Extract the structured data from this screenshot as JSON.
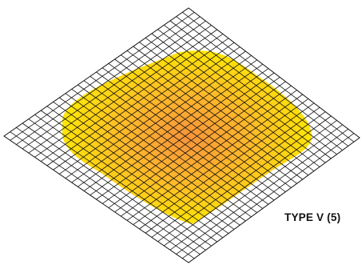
{
  "diagram": {
    "label": "TYPE V (5)",
    "grid_divisions": 30,
    "colors": {
      "background": "#ffffff",
      "grid_line": "#111111",
      "fill_outer": "#ffee00",
      "fill_middle": "#ffb82a",
      "fill_center": "#f7943a"
    }
  }
}
